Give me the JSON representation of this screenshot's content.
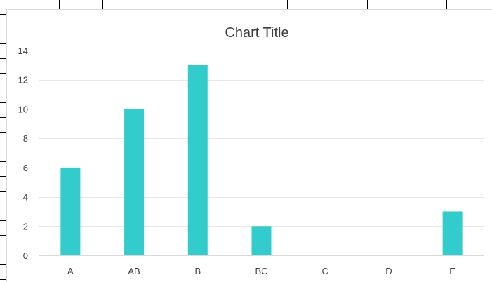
{
  "chart_data": {
    "type": "bar",
    "title": "Chart Title",
    "categories": [
      "A",
      "AB",
      "B",
      "BC",
      "C",
      "D",
      "E"
    ],
    "values": [
      6,
      10,
      13,
      2,
      0,
      0,
      3
    ],
    "xlabel": "",
    "ylabel": "",
    "ylim": [
      0,
      14
    ],
    "yticks": [
      0,
      2,
      4,
      6,
      8,
      10,
      12,
      14
    ],
    "grid": true,
    "legend": "none",
    "bar_color": "#33CCCC"
  }
}
